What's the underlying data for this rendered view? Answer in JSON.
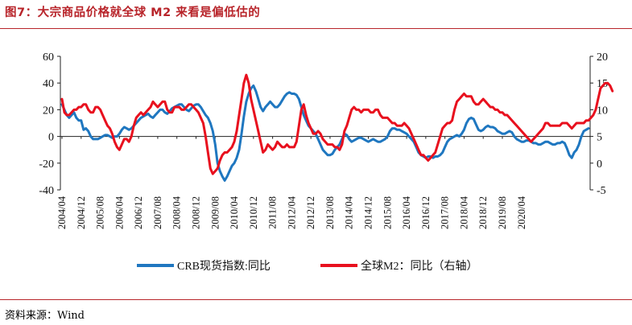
{
  "header": {
    "title": "图7：大宗商品价格就全球 M2 来看是偏低估的"
  },
  "footer": {
    "source": "资料来源：Wind"
  },
  "colors": {
    "accent": "#b8242a",
    "series_left": "#1f77c0",
    "series_right": "#e8101e"
  },
  "chart_data": {
    "type": "line",
    "title": "",
    "xlabel": "",
    "ylabel": "",
    "xticks": [
      "2004/04",
      "2004/12",
      "2005/08",
      "2006/04",
      "2006/12",
      "2007/08",
      "2008/04",
      "2008/12",
      "2009/08",
      "2010/04",
      "2010/12",
      "2011/08",
      "2012/04",
      "2012/12",
      "2013/08",
      "2014/04",
      "2014/12",
      "2015/08",
      "2016/04",
      "2016/12",
      "2017/08",
      "2018/04",
      "2018/12",
      "2019/08",
      "2020/04"
    ],
    "x_start": "2004/04",
    "x_step": "monthly",
    "ylim_left": [
      -40,
      60
    ],
    "yticks_left": [
      -40,
      -20,
      0,
      20,
      40,
      60
    ],
    "ylim_right": [
      -5,
      20
    ],
    "yticks_right": [
      -5,
      0,
      5,
      10,
      15,
      20
    ],
    "legend_position": "bottom",
    "grid": false,
    "series": [
      {
        "name": "CRB现货指数:同比",
        "axis": "left",
        "color": "#1f77c0",
        "values": [
          24,
          20,
          16,
          14,
          16,
          18,
          14,
          12,
          12,
          5,
          6,
          4,
          0,
          -2,
          -2,
          -2,
          -1,
          0,
          1,
          1,
          0,
          -1,
          0,
          0,
          2,
          5,
          7,
          6,
          5,
          6,
          8,
          10,
          12,
          14,
          15,
          16,
          17,
          15,
          14,
          16,
          18,
          20,
          20,
          18,
          17,
          19,
          21,
          22,
          23,
          24,
          24,
          22,
          20,
          19,
          21,
          23,
          24,
          24,
          22,
          19,
          16,
          14,
          10,
          4,
          -6,
          -20,
          -26,
          -30,
          -33,
          -30,
          -26,
          -22,
          -20,
          -16,
          -10,
          2,
          15,
          26,
          32,
          36,
          38,
          34,
          28,
          22,
          19,
          22,
          24,
          26,
          24,
          22,
          22,
          24,
          27,
          30,
          32,
          33,
          32,
          32,
          31,
          28,
          22,
          16,
          12,
          8,
          6,
          4,
          2,
          -2,
          -6,
          -10,
          -12,
          -14,
          -14,
          -13,
          -10,
          -8,
          -6,
          -2,
          2,
          1,
          -2,
          -4,
          -3,
          -2,
          -1,
          -1,
          -2,
          -3,
          -4,
          -3,
          -2,
          -3,
          -4,
          -4,
          -3,
          -2,
          0,
          4,
          6,
          6,
          5,
          5,
          4,
          3,
          2,
          0,
          -2,
          -4,
          -8,
          -12,
          -14,
          -15,
          -16,
          -15,
          -15,
          -16,
          -15,
          -15,
          -14,
          -12,
          -8,
          -4,
          -2,
          -1,
          0,
          1,
          0,
          2,
          5,
          10,
          13,
          14,
          13,
          9,
          5,
          4,
          5,
          7,
          8,
          7,
          7,
          6,
          4,
          3,
          2,
          2,
          3,
          4,
          3,
          0,
          -2,
          -3,
          -4,
          -4,
          -3,
          -3,
          -4,
          -5,
          -5,
          -6,
          -6,
          -5,
          -4,
          -4,
          -5,
          -6,
          -6,
          -5,
          -5,
          -4,
          -5,
          -9,
          -14,
          -16,
          -12,
          -10,
          -6,
          0,
          4,
          5,
          6
        ]
      },
      {
        "name": "全球M2：同比（右轴）",
        "axis": "right",
        "color": "#e8101e",
        "values": [
          12.0,
          9.5,
          9.0,
          9.0,
          9.5,
          10.0,
          10.0,
          10.5,
          10.5,
          11.0,
          11.0,
          10.0,
          9.5,
          9.5,
          10.5,
          10.5,
          10.0,
          9.0,
          8.0,
          7.0,
          6.5,
          5.5,
          4.0,
          3.0,
          2.5,
          3.5,
          4.5,
          4.5,
          4.0,
          5.0,
          7.0,
          8.5,
          9.0,
          9.5,
          9.0,
          9.5,
          10.0,
          10.5,
          11.5,
          11.0,
          10.5,
          11.0,
          11.5,
          11.5,
          10.0,
          9.5,
          9.5,
          10.5,
          10.5,
          10.5,
          10.0,
          10.0,
          10.5,
          11.0,
          11.0,
          10.5,
          10.0,
          9.5,
          8.5,
          7.5,
          5.0,
          2.0,
          -1.0,
          -2.0,
          -1.5,
          -1.0,
          0.5,
          1.5,
          2.0,
          2.0,
          2.5,
          3.0,
          4.0,
          6.0,
          9.0,
          12.0,
          15.0,
          16.5,
          15.0,
          12.0,
          10.0,
          8.0,
          6.0,
          4.0,
          2.0,
          2.5,
          3.5,
          3.0,
          2.5,
          3.0,
          4.0,
          3.5,
          3.0,
          3.0,
          3.5,
          3.0,
          3.0,
          3.0,
          4.0,
          7.0,
          10.0,
          11.0,
          9.0,
          7.5,
          6.5,
          5.5,
          5.5,
          6.0,
          5.5,
          4.5,
          4.0,
          3.5,
          3.5,
          3.5,
          3.0,
          3.0,
          2.5,
          3.5,
          6.0,
          7.0,
          8.5,
          10.0,
          10.5,
          10.0,
          10.0,
          9.5,
          10.0,
          10.0,
          10.0,
          9.5,
          9.5,
          10.0,
          10.0,
          9.0,
          8.5,
          8.5,
          8.5,
          8.0,
          7.5,
          7.5,
          7.0,
          7.0,
          7.0,
          7.5,
          7.0,
          6.5,
          5.5,
          4.5,
          3.5,
          2.5,
          1.5,
          1.5,
          1.0,
          0.5,
          1.0,
          1.5,
          2.0,
          3.5,
          5.0,
          6.5,
          7.0,
          7.5,
          7.5,
          8.0,
          10.0,
          11.5,
          12.0,
          12.5,
          13.0,
          12.5,
          12.5,
          12.5,
          11.5,
          11.0,
          11.0,
          11.5,
          12.0,
          11.5,
          11.0,
          10.5,
          10.5,
          10.0,
          10.0,
          9.5,
          9.5,
          9.0,
          9.0,
          8.5,
          8.0,
          7.5,
          7.0,
          6.5,
          6.0,
          5.5,
          5.0,
          4.5,
          4.0,
          4.5,
          5.0,
          5.5,
          6.0,
          6.5,
          7.5,
          7.5,
          7.0,
          7.0,
          7.0,
          7.0,
          7.0,
          7.5,
          7.5,
          7.5,
          7.0,
          6.5,
          7.0,
          7.5,
          7.5,
          7.5,
          7.5,
          8.0,
          8.0,
          8.5,
          9.0,
          10.0,
          12.0,
          14.0,
          14.5,
          15.0,
          15.0,
          14.5,
          13.5
        ]
      }
    ]
  }
}
